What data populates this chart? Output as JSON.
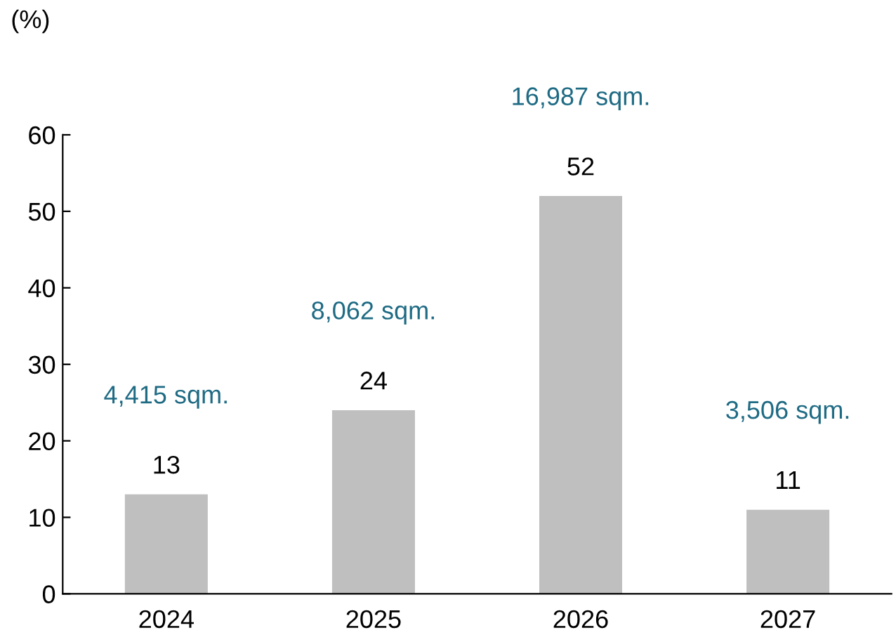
{
  "chart_data": {
    "type": "bar",
    "ylabel": "(%)",
    "categories": [
      "2024",
      "2025",
      "2026",
      "2027"
    ],
    "values": [
      13,
      24,
      52,
      11
    ],
    "color": "#bfbfbf",
    "data_labels": true,
    "annotations": [
      "4,415 sqm.",
      "8,062 sqm.",
      "16,987 sqm.",
      "3,506 sqm."
    ],
    "ylim": [
      0,
      60
    ],
    "yticks": [
      0,
      10,
      20,
      30,
      40,
      50,
      60
    ],
    "grid": false,
    "legend": false
  }
}
